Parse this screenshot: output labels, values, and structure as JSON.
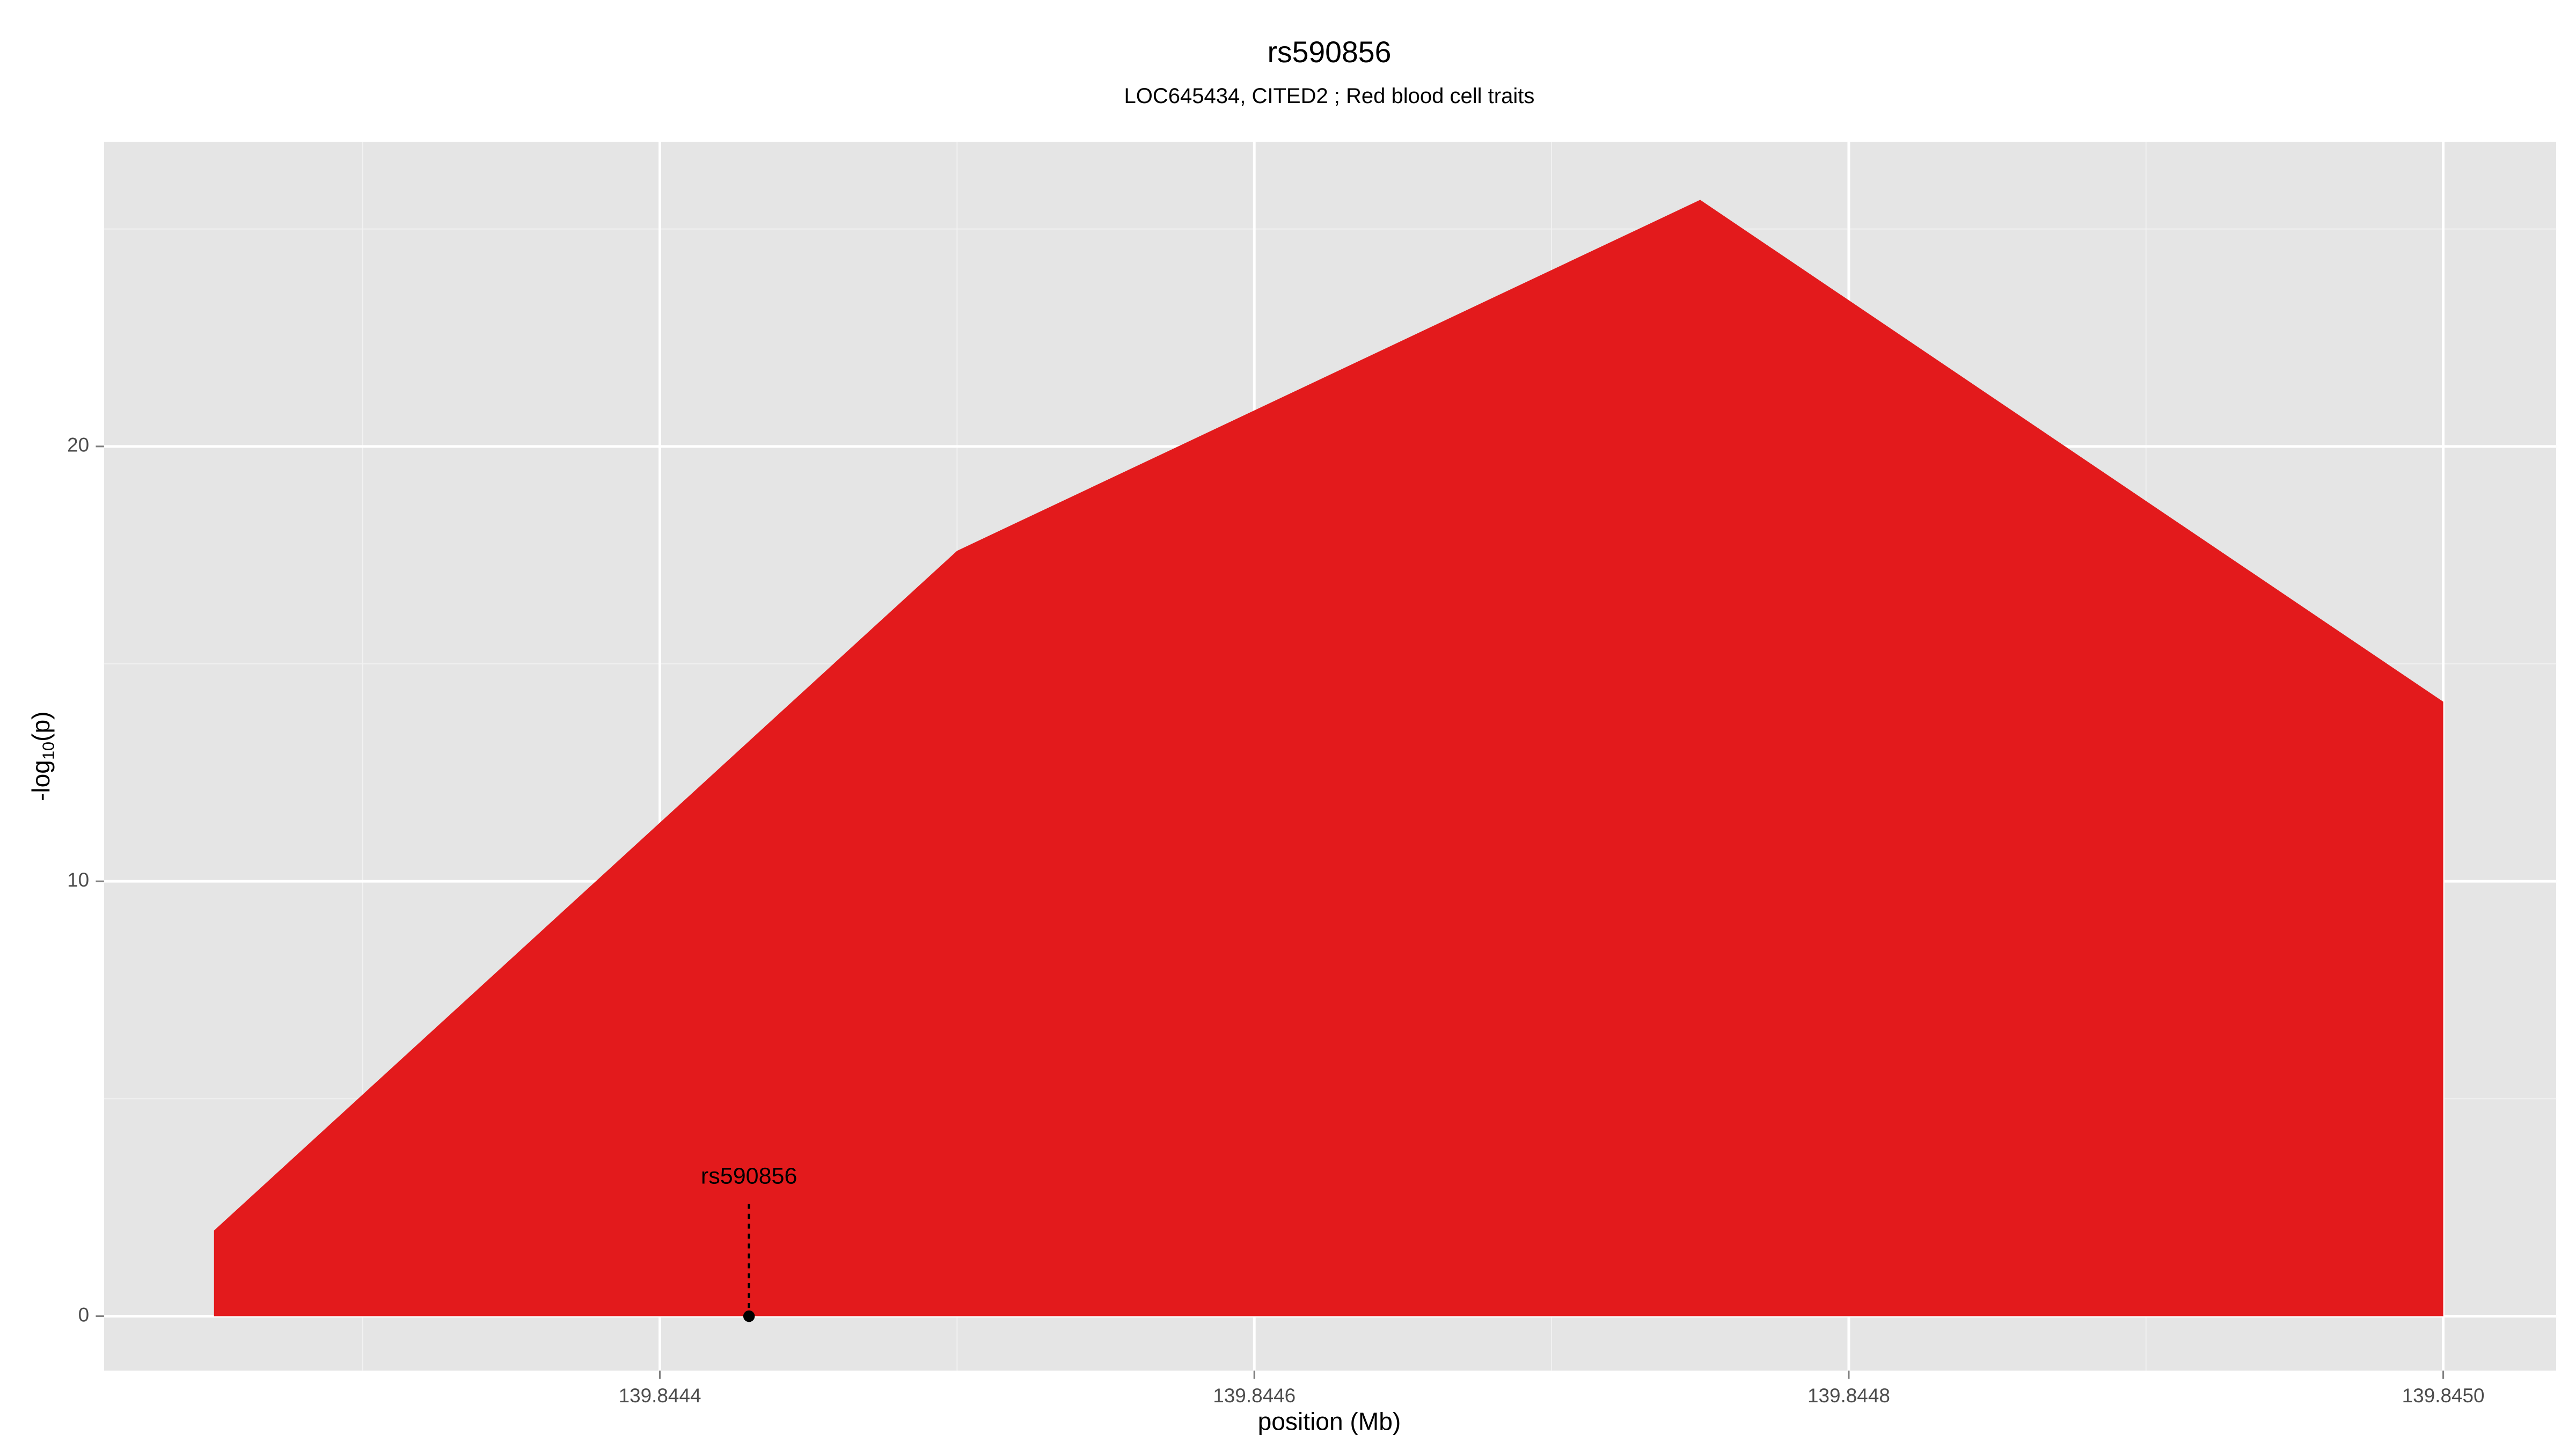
{
  "chart_data": {
    "type": "area",
    "title": "rs590856",
    "subtitle": "LOC645434, CITED2 ; Red blood cell traits",
    "x_label": "position (Mb)",
    "y_label": [
      "-log",
      "10",
      "(p)"
    ],
    "x": [
      139.84425,
      139.8445,
      139.84475,
      139.845
    ],
    "values": [
      1.97,
      17.6,
      25.67,
      14.13
    ],
    "color": "#e31a1c",
    "xlim": [
      139.844213,
      139.845038
    ],
    "ylim": [
      -1.25,
      27
    ],
    "xticks": [
      139.8444,
      139.8446,
      139.8448,
      {
        "value": 139.845,
        "label": "139.8450"
      }
    ],
    "yticks": [
      0,
      10,
      20
    ],
    "grid": true,
    "annotation": {
      "label": "rs590856",
      "x": 139.84443,
      "y": 0
    }
  }
}
